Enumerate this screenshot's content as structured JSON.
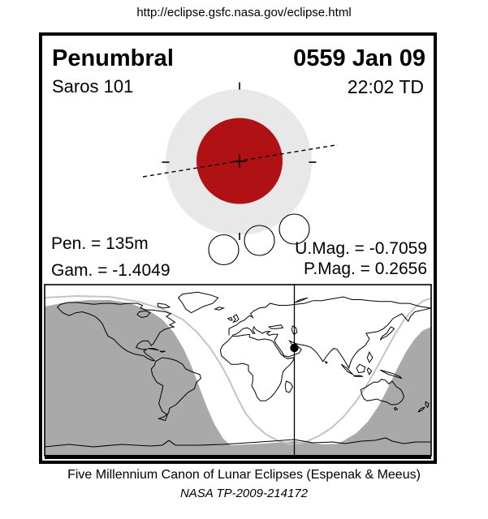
{
  "url": "http://eclipse.gsfc.nasa.gov/eclipse.html",
  "header": {
    "eclipse_type": "Penumbral",
    "date": "0559 Jan 09",
    "saros": "Saros 101",
    "time": "22:02 TD"
  },
  "stats": {
    "penumbral_duration": "Pen. = 135m",
    "gamma": "Gam. = -1.4049",
    "umbral_magnitude": "U.Mag. = -0.7059",
    "penumbral_magnitude": "P.Mag. = 0.2656"
  },
  "footer": {
    "line1": "Five Millennium Canon of Lunar Eclipses (Espenak & Meeus)",
    "line2": "NASA TP-2009-214172"
  },
  "colors": {
    "umbra_red": "#b01115",
    "penumbra_gray": "#e8e8e8",
    "map_not_visible_gray": "#a9a9a9",
    "visibility_curve_gray": "#c4c4c4"
  }
}
